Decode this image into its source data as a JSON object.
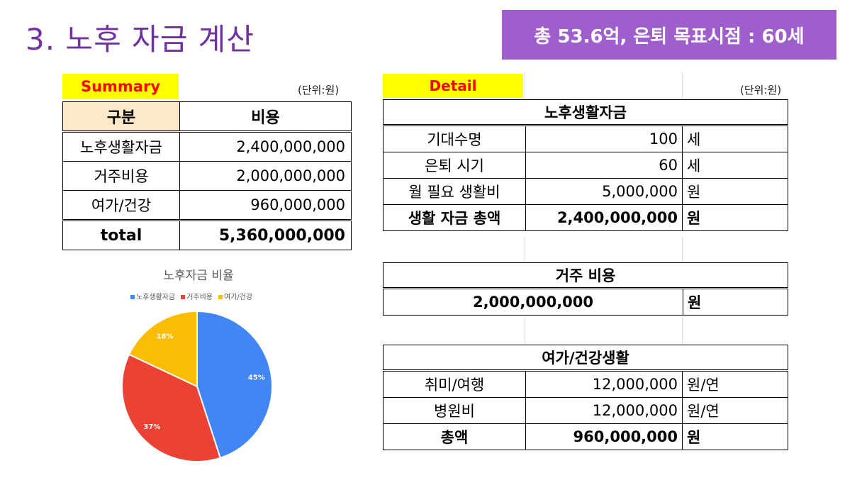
{
  "title": "3. 노후 자금 계산",
  "badge": "총 53.6억, 은퇴 목표시점 : 60세",
  "summary": {
    "label": "Summary",
    "unit": "(단위:원)",
    "headers": [
      "구분",
      "비용"
    ],
    "rows": [
      [
        "노후생활자금",
        "2,400,000,000"
      ],
      [
        "거주비용",
        "2,000,000,000"
      ],
      [
        "여가/건강",
        "960,000,000"
      ]
    ],
    "total": [
      "total",
      "5,360,000,000"
    ]
  },
  "chart_data": {
    "type": "pie",
    "title": "노후자금 비율",
    "categories": [
      "노후생활자금",
      "거주비용",
      "여가/건강"
    ],
    "values": [
      45,
      37,
      18
    ],
    "labels": [
      "45%",
      "37%",
      "18%"
    ],
    "colors": [
      "#4285f4",
      "#ea4335",
      "#fbbc04"
    ],
    "legend": "top"
  },
  "detail": {
    "label": "Detail",
    "unit": "(단위:원)",
    "living": {
      "header": "노후생활자금",
      "rows": [
        [
          "기대수명",
          "100",
          "세"
        ],
        [
          "은퇴 시기",
          "60",
          "세"
        ],
        [
          "월 필요 생활비",
          "5,000,000",
          "원"
        ]
      ],
      "total": [
        "생활 자금 총액",
        "2,400,000,000",
        "원"
      ]
    },
    "housing": {
      "header": "거주 비용",
      "value": "2,000,000,000",
      "unit": "원"
    },
    "leisure": {
      "header": "여가/건강생활",
      "rows": [
        [
          "취미/여행",
          "12,000,000",
          "원/연"
        ],
        [
          "병원비",
          "12,000,000",
          "원/연"
        ]
      ],
      "total": [
        "총액",
        "960,000,000",
        "원"
      ]
    }
  }
}
